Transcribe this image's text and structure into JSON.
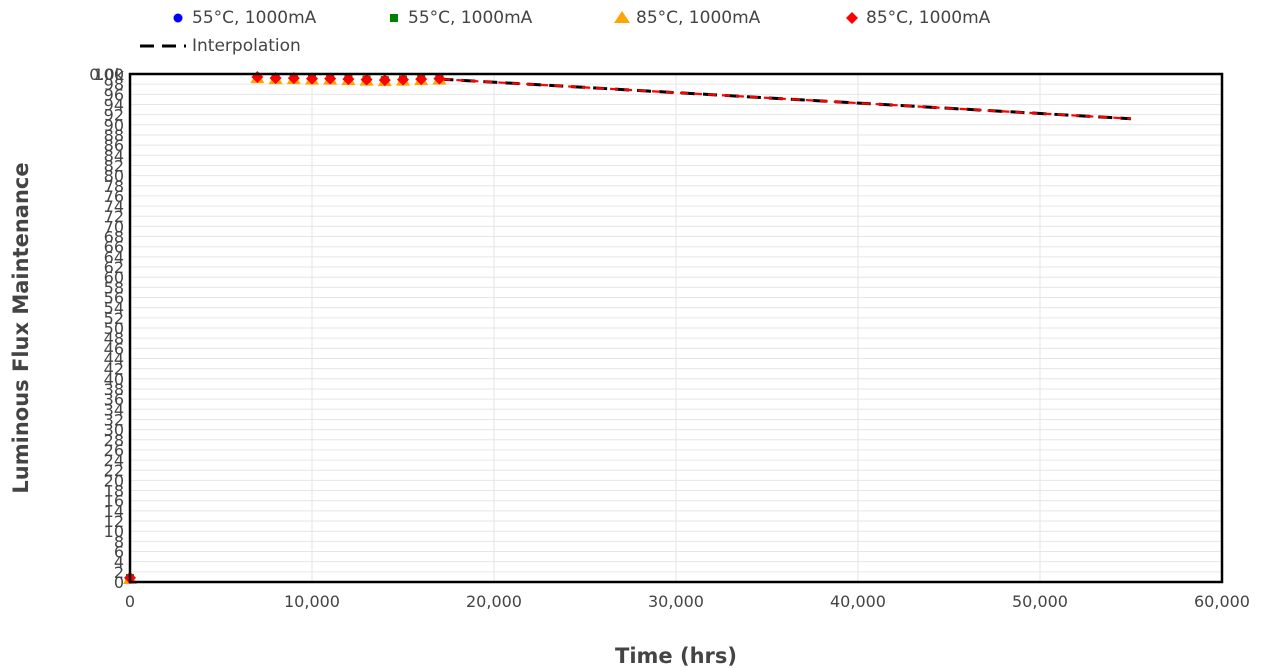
{
  "chart_data": {
    "type": "scatter",
    "xlabel": "Time (hrs)",
    "ylabel": "Luminous Flux Maintenance",
    "xlim": [
      0,
      60000
    ],
    "ylim": [
      0,
      100
    ],
    "grid": true,
    "legend_position": "top-left",
    "x_ticks": [
      0,
      10000,
      20000,
      30000,
      40000,
      50000,
      60000
    ],
    "x_tick_labels": [
      "0",
      "10,000",
      "20,000",
      "30,000",
      "40,000",
      "50,000",
      "60,000"
    ],
    "y_top_tick_label": "0.0k",
    "y_tick_labels": [
      "100",
      "98",
      "96",
      "94",
      "92",
      "90",
      "88",
      "86",
      "84",
      "82",
      "80",
      "78",
      "76",
      "74",
      "72",
      "70",
      "68",
      "66",
      "64",
      "62",
      "60",
      "58",
      "56",
      "54",
      "52",
      "50",
      "48",
      "46",
      "44",
      "42",
      "40",
      "38",
      "36",
      "34",
      "32",
      "30",
      "28",
      "26",
      "24",
      "22",
      "20",
      "18",
      "16",
      "14",
      "12",
      "10",
      "8",
      "6",
      "4",
      "2",
      "0"
    ],
    "series": [
      {
        "name": "55°C, 1000mA",
        "marker": "circle",
        "color": "#0000ff",
        "x": [
          0,
          7000,
          8000,
          9000,
          10000,
          11000,
          12000,
          13000,
          14000,
          15000,
          16000,
          17000
        ],
        "y": [
          0.8,
          99.4,
          99.2,
          99.2,
          99.1,
          99.1,
          99.0,
          98.9,
          98.8,
          98.9,
          99.0,
          99.1
        ]
      },
      {
        "name": "55°C, 1000mA",
        "marker": "square",
        "color": "#008000",
        "x": [
          0,
          7000,
          8000,
          9000,
          10000,
          11000,
          12000,
          13000,
          14000,
          15000,
          16000,
          17000
        ],
        "y": [
          0.8,
          99.4,
          99.2,
          99.2,
          99.1,
          99.1,
          99.0,
          98.9,
          98.8,
          98.9,
          99.0,
          99.1
        ]
      },
      {
        "name": "85°C, 1000mA",
        "marker": "triangle",
        "color": "#ffa500",
        "x": [
          0,
          7000,
          8000,
          9000,
          10000,
          11000,
          12000,
          13000,
          14000,
          15000,
          16000,
          17000
        ],
        "y": [
          0.6,
          99.2,
          99.0,
          99.0,
          98.9,
          98.9,
          98.8,
          98.7,
          98.6,
          98.7,
          98.8,
          98.9
        ]
      },
      {
        "name": "85°C, 1000mA",
        "marker": "diamond",
        "color": "#ff0000",
        "x": [
          0,
          7000,
          8000,
          9000,
          10000,
          11000,
          12000,
          13000,
          14000,
          15000,
          16000,
          17000
        ],
        "y": [
          0.8,
          99.4,
          99.2,
          99.2,
          99.1,
          99.1,
          99.0,
          98.9,
          98.8,
          98.9,
          99.0,
          99.1
        ]
      }
    ],
    "lines": [
      {
        "name": "Interpolation",
        "style": "dash",
        "color": "#000000",
        "x": [
          17000,
          55000
        ],
        "y": [
          99.0,
          91.2
        ]
      },
      {
        "name": "",
        "style": "dash",
        "color": "#ff0000",
        "x": [
          17000,
          55000
        ],
        "y": [
          99.0,
          91.2
        ]
      }
    ]
  },
  "legend": {
    "items": [
      {
        "label": "55°C, 1000mA",
        "marker": "circle",
        "color": "#0000ff"
      },
      {
        "label": "55°C, 1000mA",
        "marker": "square",
        "color": "#008000"
      },
      {
        "label": "85°C, 1000mA",
        "marker": "triangle",
        "color": "#ffa500"
      },
      {
        "label": "85°C, 1000mA",
        "marker": "diamond",
        "color": "#ff0000"
      },
      {
        "label": "Interpolation",
        "marker": "dash",
        "color": "#000000"
      }
    ]
  }
}
